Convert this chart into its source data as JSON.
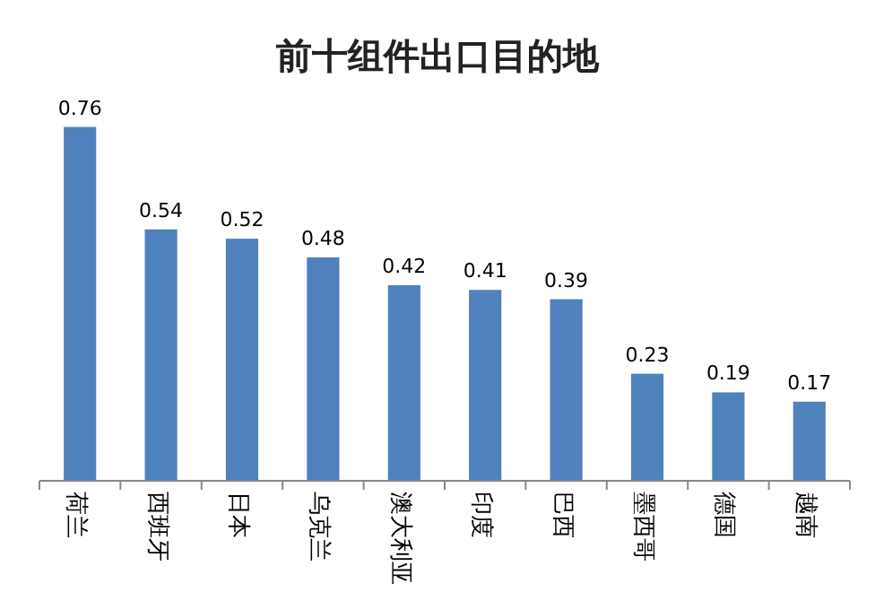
{
  "chart_data": {
    "type": "bar",
    "title": "前十组件出口目的地",
    "categories": [
      "荷兰",
      "西班牙",
      "日本",
      "乌克兰",
      "澳大利亚",
      "印度",
      "巴西",
      "墨西哥",
      "德国",
      "越南"
    ],
    "values": [
      0.76,
      0.54,
      0.52,
      0.48,
      0.42,
      0.41,
      0.39,
      0.23,
      0.19,
      0.17
    ],
    "color": "#4f81bd",
    "data_labels": true
  }
}
